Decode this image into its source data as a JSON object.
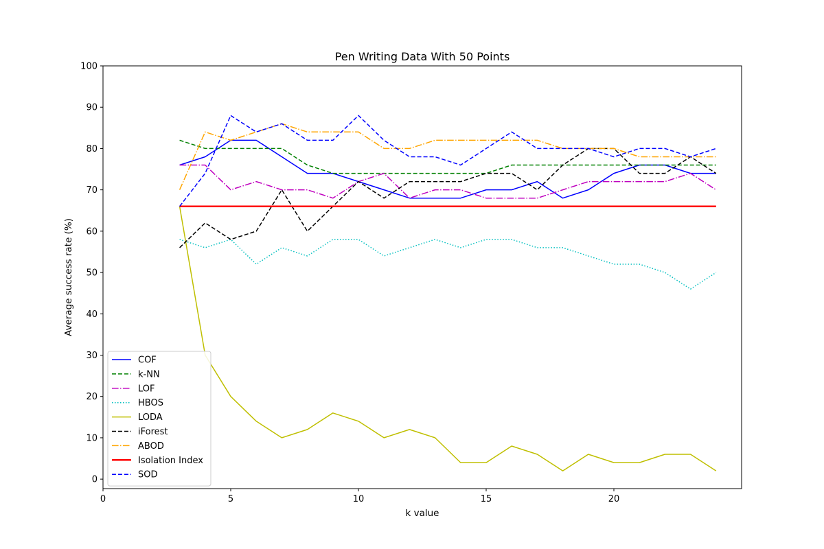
{
  "chart_data": {
    "type": "line",
    "title": "Pen Writing Data With 50 Points",
    "xlabel": "k value",
    "ylabel": "Average success rate (%)",
    "xlim": [
      0,
      25
    ],
    "ylim": [
      -2.3,
      100
    ],
    "xticks": [
      0,
      5,
      10,
      15,
      20
    ],
    "yticks": [
      0,
      10,
      20,
      30,
      40,
      50,
      60,
      70,
      80,
      90,
      100
    ],
    "grid": false,
    "legend_position": "lower-left",
    "x": [
      3,
      4,
      5,
      6,
      7,
      8,
      9,
      10,
      11,
      12,
      13,
      14,
      15,
      16,
      17,
      18,
      19,
      20,
      21,
      22,
      23,
      24
    ],
    "series": [
      {
        "name": "COF",
        "color": "#0000ff",
        "style": "solid",
        "width": 1.5,
        "values": [
          76,
          78,
          82,
          82,
          78,
          74,
          74,
          72,
          70,
          68,
          68,
          68,
          70,
          70,
          72,
          68,
          70,
          74,
          76,
          76,
          74,
          74
        ]
      },
      {
        "name": "k-NN",
        "color": "#008000",
        "style": "dashed",
        "width": 1.5,
        "values": [
          82,
          80,
          80,
          80,
          80,
          76,
          74,
          74,
          74,
          74,
          74,
          74,
          74,
          76,
          76,
          76,
          76,
          76,
          76,
          76,
          76,
          76
        ]
      },
      {
        "name": "LOF",
        "color": "#bf00bf",
        "style": "dashdot",
        "width": 1.5,
        "values": [
          76,
          76,
          70,
          72,
          70,
          70,
          68,
          72,
          74,
          68,
          70,
          70,
          68,
          68,
          68,
          70,
          72,
          72,
          72,
          72,
          74,
          70
        ]
      },
      {
        "name": "HBOS",
        "color": "#00bfbf",
        "style": "dotted",
        "width": 1.5,
        "values": [
          58,
          56,
          58,
          52,
          56,
          54,
          58,
          58,
          54,
          56,
          58,
          56,
          58,
          58,
          56,
          56,
          54,
          52,
          52,
          50,
          46,
          50
        ]
      },
      {
        "name": "LODA",
        "color": "#bfbf00",
        "style": "solid",
        "width": 1.5,
        "values": [
          66,
          30,
          20,
          14,
          10,
          12,
          16,
          14,
          10,
          12,
          10,
          4,
          4,
          8,
          6,
          2,
          6,
          4,
          4,
          6,
          6,
          2
        ]
      },
      {
        "name": "iForest",
        "color": "#000000",
        "style": "dashed",
        "width": 1.5,
        "values": [
          56,
          62,
          58,
          60,
          70,
          60,
          66,
          72,
          68,
          72,
          72,
          72,
          74,
          74,
          70,
          76,
          80,
          80,
          74,
          74,
          78,
          74
        ]
      },
      {
        "name": "ABOD",
        "color": "#ffa500",
        "style": "dashdot",
        "width": 1.5,
        "values": [
          70,
          84,
          82,
          84,
          86,
          84,
          84,
          84,
          80,
          80,
          82,
          82,
          82,
          82,
          82,
          80,
          80,
          80,
          78,
          78,
          78,
          78
        ]
      },
      {
        "name": "Isolation Index",
        "color": "#ff0000",
        "style": "solid",
        "width": 2.5,
        "values": [
          66,
          66,
          66,
          66,
          66,
          66,
          66,
          66,
          66,
          66,
          66,
          66,
          66,
          66,
          66,
          66,
          66,
          66,
          66,
          66,
          66,
          66
        ]
      },
      {
        "name": "SOD",
        "color": "#0000ff",
        "style": "dashed",
        "width": 1.5,
        "values": [
          66,
          74,
          88,
          84,
          86,
          82,
          82,
          88,
          82,
          78,
          78,
          76,
          80,
          84,
          80,
          80,
          80,
          78,
          80,
          80,
          78,
          80
        ]
      }
    ]
  }
}
